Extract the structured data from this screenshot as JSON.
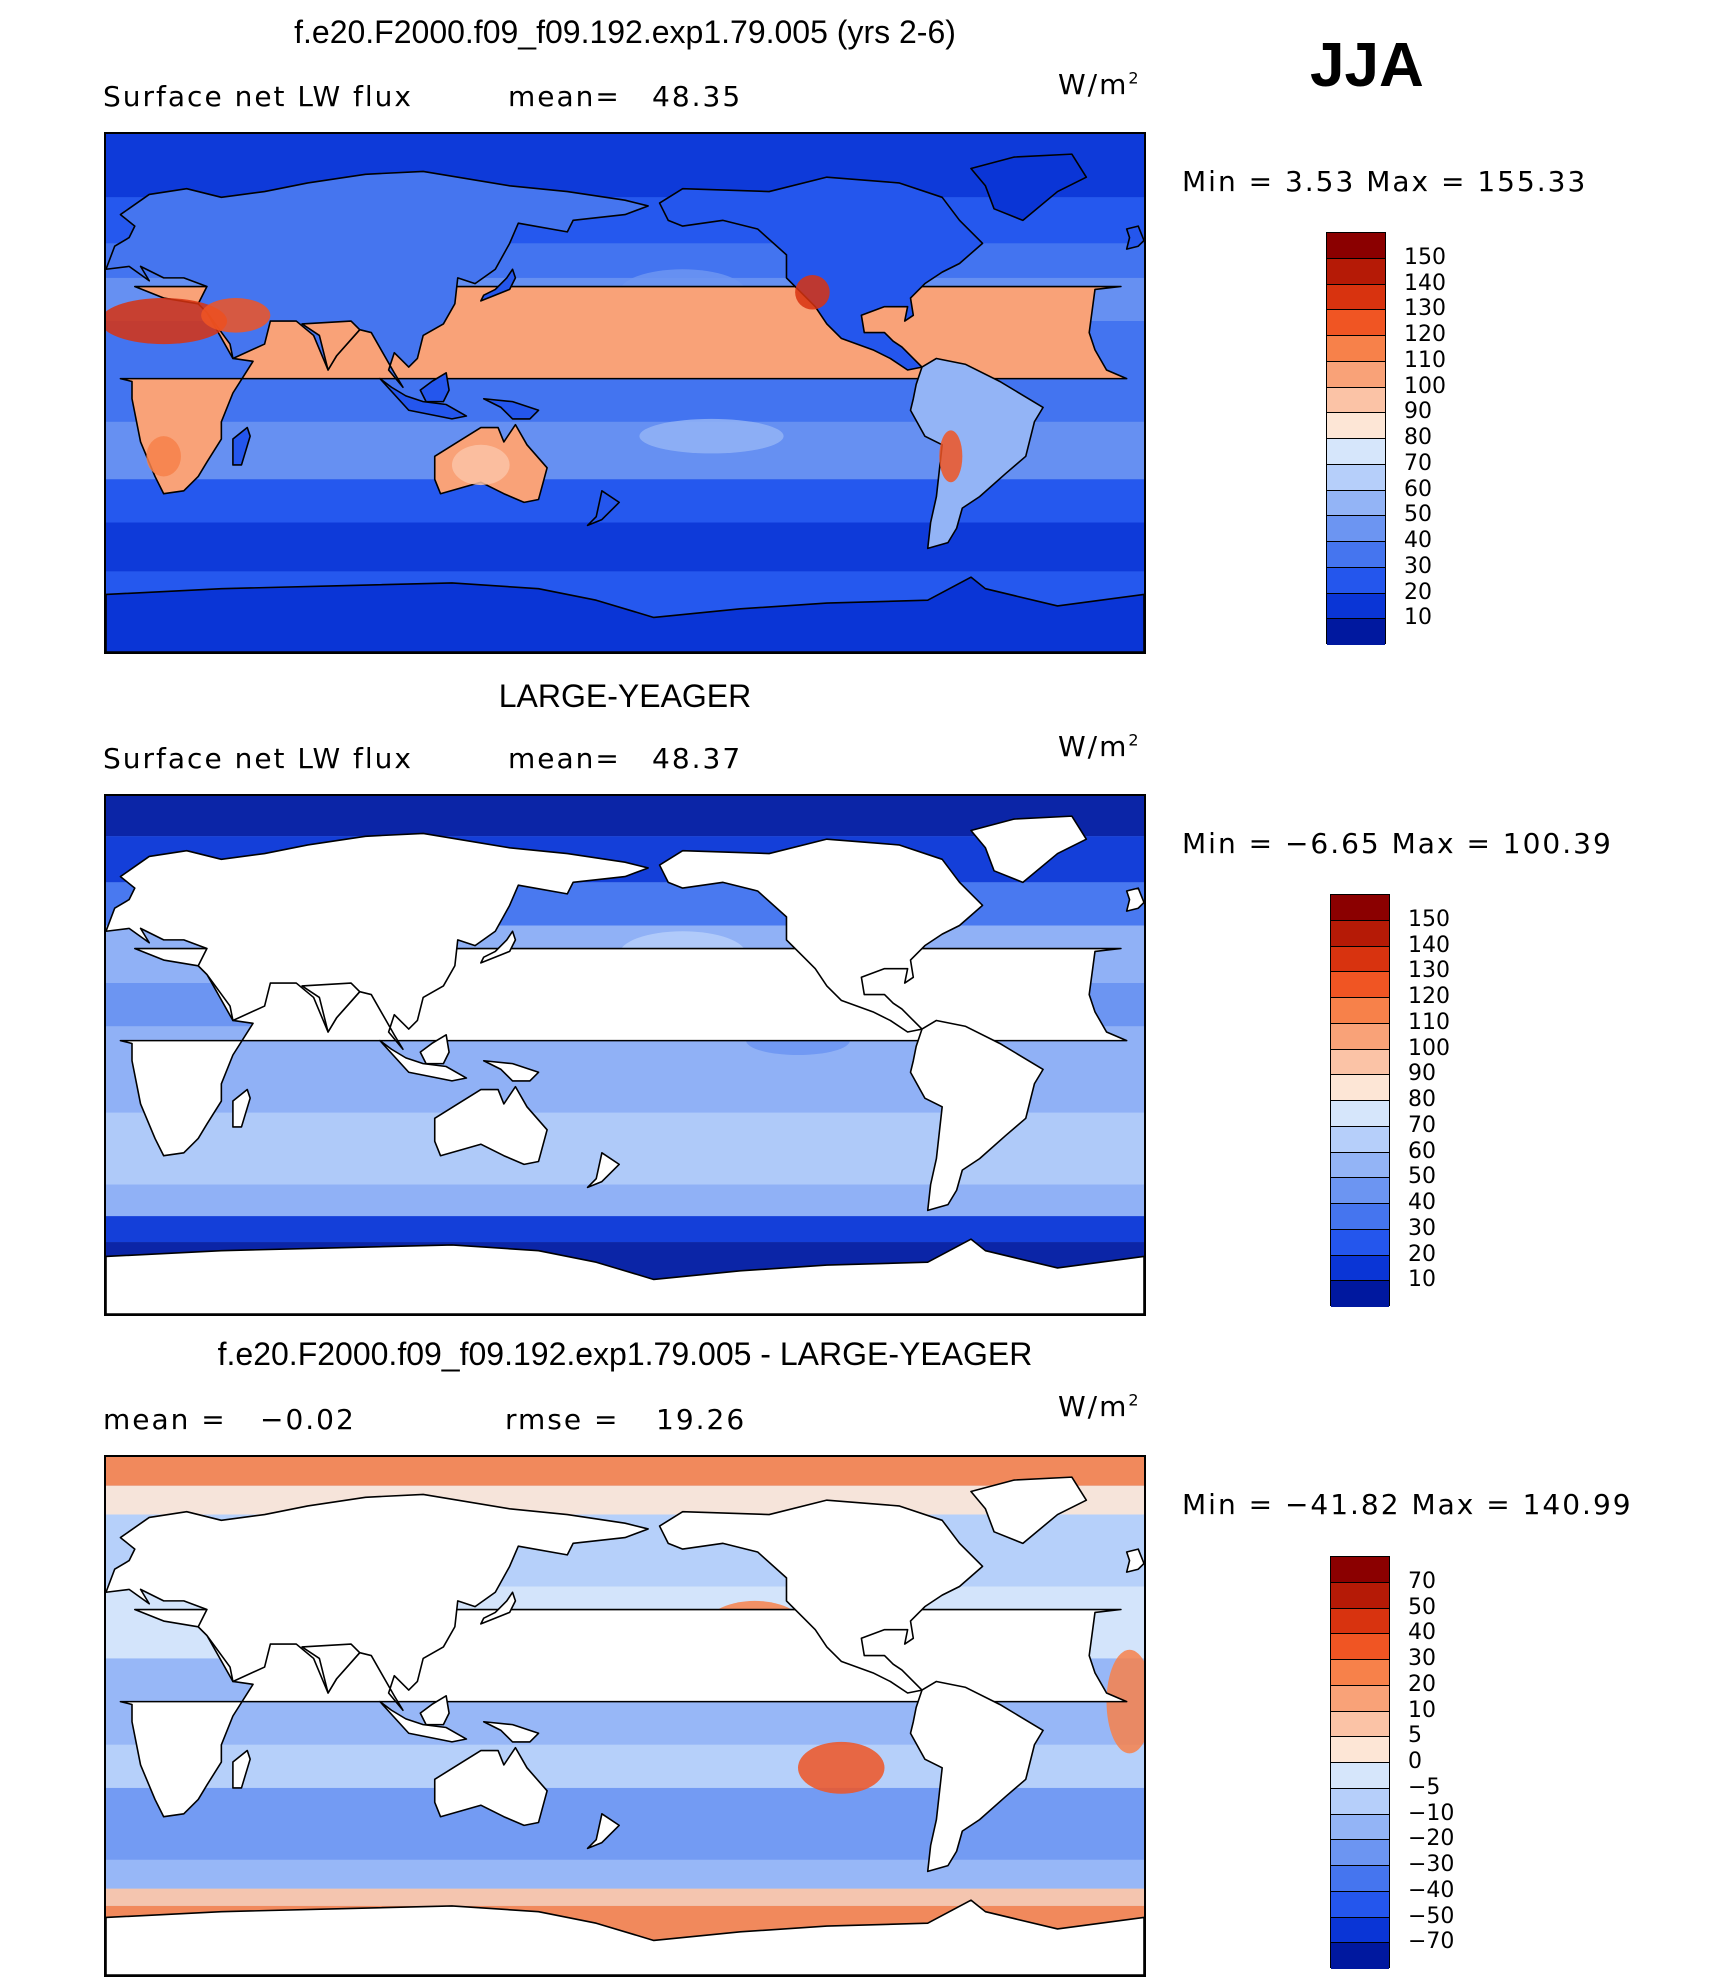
{
  "season": "JJA",
  "panels": [
    {
      "title": "f.e20.F2000.f09_f09.192.exp1.79.005 (yrs 2-6)",
      "left_label": "Surface net LW flux",
      "center_label": "mean=",
      "center_value": "48.35",
      "units_base": "W/m",
      "units_exp": "2",
      "minmax": "Min =    3.53 Max = 155.33",
      "colorbar_labels": [
        "150",
        "140",
        "130",
        "120",
        "110",
        "100",
        "90",
        "80",
        "70",
        "60",
        "50",
        "40",
        "30",
        "20",
        "10"
      ],
      "colorbar_colors": [
        "#8b0000",
        "#b51a06",
        "#d8330f",
        "#f05523",
        "#f7814a",
        "#f9a278",
        "#fbc3a6",
        "#fde6d6",
        "#d6e6fb",
        "#b6cffa",
        "#93b4f6",
        "#6c95f2",
        "#4575ef",
        "#2456ed",
        "#0a35d6",
        "#00189f"
      ],
      "map": {
        "ocean": "#3a6cf0",
        "land_mode": "filled"
      }
    },
    {
      "title": "LARGE-YEAGER",
      "left_label": "Surface net LW flux",
      "center_label": "mean=",
      "center_value": "48.37",
      "units_base": "W/m",
      "units_exp": "2",
      "minmax": "Min =   −6.65 Max = 100.39",
      "colorbar_labels": [
        "150",
        "140",
        "130",
        "120",
        "110",
        "100",
        "90",
        "80",
        "70",
        "60",
        "50",
        "40",
        "30",
        "20",
        "10"
      ],
      "colorbar_colors": [
        "#8b0000",
        "#b51a06",
        "#d8330f",
        "#f05523",
        "#f7814a",
        "#f9a278",
        "#fbc3a6",
        "#fde6d6",
        "#d6e6fb",
        "#b6cffa",
        "#93b4f6",
        "#6c95f2",
        "#4575ef",
        "#2456ed",
        "#0a35d6",
        "#00189f"
      ],
      "map": {
        "ocean": "#6e97f2",
        "land_mode": "white"
      }
    },
    {
      "title": "f.e20.F2000.f09_f09.192.exp1.79.005 - LARGE-YEAGER",
      "left_label": "mean =",
      "left_value": "−0.02",
      "center_label": "rmse =",
      "center_value": "19.26",
      "units_base": "W/m",
      "units_exp": "2",
      "minmax": "Min = −41.82 Max = 140.99",
      "colorbar_labels": [
        "70",
        "50",
        "40",
        "30",
        "20",
        "10",
        "5",
        "0",
        "−5",
        "−10",
        "−20",
        "−30",
        "−40",
        "−50",
        "−70"
      ],
      "colorbar_colors": [
        "#8b0000",
        "#b51a06",
        "#d8330f",
        "#f05523",
        "#f7814a",
        "#f9a278",
        "#fbc3a6",
        "#fde6d6",
        "#d6e6fb",
        "#b6cffa",
        "#93b4f6",
        "#6c95f2",
        "#4575ef",
        "#2456ed",
        "#0a35d6",
        "#00189f"
      ],
      "map": {
        "ocean": "#b6cffa",
        "land_mode": "white"
      }
    }
  ]
}
